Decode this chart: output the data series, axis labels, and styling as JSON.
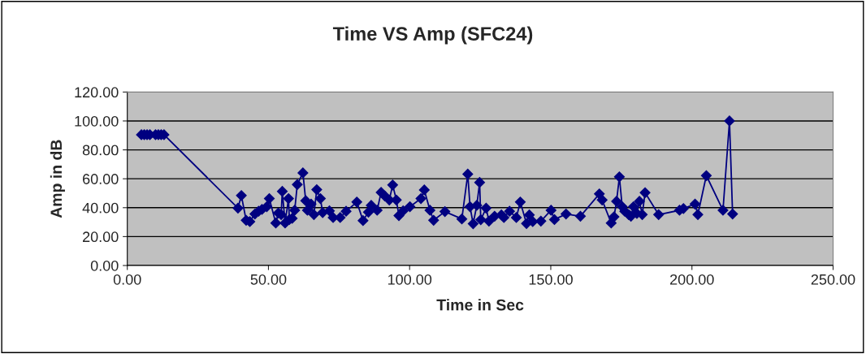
{
  "chart_data": {
    "type": "line",
    "title": "Time VS Amp (SFC24)",
    "xlabel": "Time in Sec",
    "ylabel": "Amp in dB",
    "series": [
      {
        "color": "#000080",
        "x": [
          5,
          6,
          7,
          8,
          10,
          11,
          12,
          13,
          39.2,
          40.4,
          42.1,
          43.4,
          45.2,
          46.5,
          47.7,
          49.4,
          50.3,
          52.6,
          53.5,
          54.5,
          54.9,
          55.9,
          57.1,
          57.4,
          58.4,
          59.3,
          60.2,
          62.2,
          63.2,
          63.8,
          65.1,
          66.1,
          67.1,
          68.4,
          69.2,
          71.6,
          72.9,
          75.4,
          77.5,
          81.3,
          83.5,
          85.4,
          86.4,
          88.5,
          89.9,
          91.2,
          92.8,
          94.0,
          95.3,
          96.2,
          97.7,
          100.1,
          104.0,
          105.2,
          107.2,
          108.5,
          112.5,
          118.5,
          120.6,
          121.4,
          122.5,
          123.8,
          124.8,
          125.2,
          127.1,
          128.1,
          130.1,
          132.5,
          133.4,
          135.4,
          137.8,
          139.2,
          141.4,
          142.4,
          143.6,
          146.5,
          150.1,
          151.3,
          155.4,
          160.5,
          167.2,
          168.2,
          171.4,
          172.4,
          173.3,
          174.3,
          175.3,
          176.2,
          177.6,
          178.4,
          179.3,
          180.5,
          181.4,
          182.4,
          183.4,
          188.2,
          195.6,
          197.0,
          201.1,
          202.1,
          205.1,
          211.0,
          213.3,
          214.4
        ],
        "values": [
          90.5,
          90.5,
          90.5,
          90.5,
          90.5,
          90.5,
          90.5,
          90.5,
          39.7,
          48.4,
          31.3,
          30.4,
          35.6,
          37.5,
          38.8,
          40.7,
          46.3,
          29.4,
          36.3,
          35.2,
          51.3,
          29.4,
          46.3,
          31.8,
          32.6,
          38.2,
          56,
          64.1,
          44.8,
          38.2,
          42.5,
          35.2,
          52.5,
          46.3,
          36.6,
          37.8,
          33.2,
          33.2,
          37.5,
          43.9,
          31.1,
          36.9,
          41.6,
          38.2,
          50.6,
          48.1,
          45.3,
          55.7,
          45.3,
          34.5,
          37.8,
          40.7,
          46.3,
          52.3,
          38.2,
          31.3,
          37.3,
          32.2,
          63.2,
          40.7,
          28.9,
          41.6,
          57.5,
          31.7,
          39.7,
          30.7,
          34.1,
          35.0,
          33.2,
          37.5,
          33.2,
          43.9,
          29.0,
          35.0,
          30.4,
          30.7,
          38.2,
          31.8,
          35.6,
          34.1,
          49.5,
          45.3,
          29.4,
          33.7,
          44.4,
          61.3,
          40.7,
          37.5,
          35.2,
          34.1,
          40.7,
          36.0,
          44.4,
          35.2,
          50.4,
          35.2,
          38.2,
          39.4,
          42.5,
          35.2,
          62.2,
          38.2,
          100,
          35.6
        ]
      }
    ],
    "xlim": [
      0,
      250
    ],
    "xticks": [
      {
        "value": 0,
        "label": "0.00"
      },
      {
        "value": 50,
        "label": "50.00"
      },
      {
        "value": 100,
        "label": "100.00"
      },
      {
        "value": 150,
        "label": "150.00"
      },
      {
        "value": 200,
        "label": "200.00"
      },
      {
        "value": 250,
        "label": "250.00"
      }
    ],
    "ylim": [
      0,
      120
    ],
    "yticks": [
      {
        "value": 0,
        "label": "0.00"
      },
      {
        "value": 20,
        "label": "20.00"
      },
      {
        "value": 40,
        "label": "40.00"
      },
      {
        "value": 60,
        "label": "60.00"
      },
      {
        "value": 80,
        "label": "80.00"
      },
      {
        "value": 100,
        "label": "100.00"
      },
      {
        "value": 120,
        "label": "120.00"
      }
    ],
    "grid": "y",
    "marker": "diamond",
    "line_style": "solid",
    "legend": false
  }
}
